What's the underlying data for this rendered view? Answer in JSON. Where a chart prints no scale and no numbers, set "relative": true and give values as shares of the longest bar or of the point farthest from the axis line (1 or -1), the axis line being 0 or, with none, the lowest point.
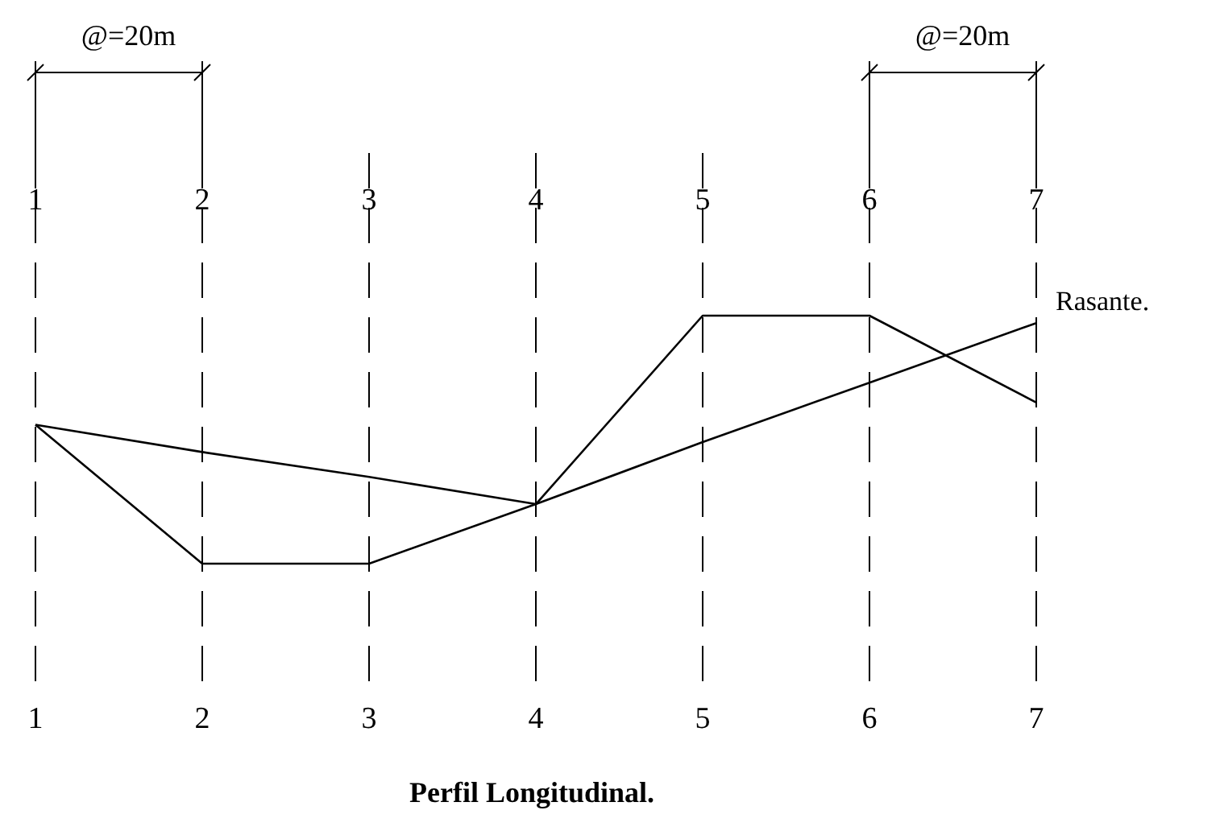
{
  "chart_data": {
    "type": "line",
    "title": "Perfil Longitudinal.",
    "categories": [
      "1",
      "2",
      "3",
      "4",
      "5",
      "6",
      "7"
    ],
    "relative": true,
    "grid": "x",
    "line_style": "solid",
    "marker": "none",
    "series": [
      {
        "color": "#000000",
        "values": [
          0.56,
          0,
          0,
          0.24,
          1,
          1,
          0.65
        ]
      },
      {
        "name": "Rasante.",
        "color": "#000000",
        "values": [
          0.56,
          0.45,
          0.35,
          0.24,
          0.49,
          0.73,
          0.97
        ]
      }
    ],
    "annotations": [
      "@=20m",
      "@=20m"
    ]
  }
}
